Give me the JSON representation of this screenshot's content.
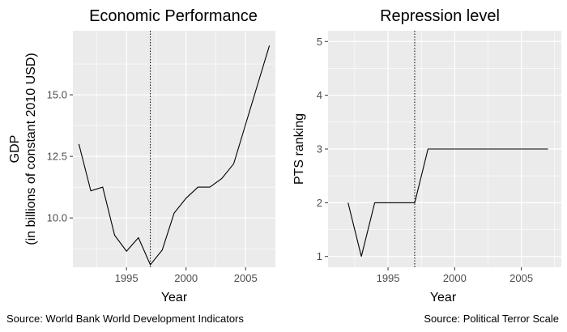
{
  "chart_data": [
    {
      "type": "line",
      "title": "Economic Performance",
      "xlabel": "Year",
      "ylabel_lines": [
        "GDP",
        "(in billions of constant 2010 USD)"
      ],
      "xlim": [
        1990.5,
        2007.5
      ],
      "ylim": [
        8.0,
        17.6
      ],
      "xticks": [
        1995,
        2000,
        2005
      ],
      "yticks": [
        10.0,
        12.5,
        15.0
      ],
      "ytick_labels": [
        "10.0",
        "12.5",
        "15.0"
      ],
      "vline_x": 1997,
      "series": [
        {
          "x": [
            1991,
            1992,
            1993,
            1994,
            1995,
            1996,
            1997,
            1998,
            1999,
            2000,
            2001,
            2002,
            2003,
            2004,
            2005,
            2006,
            2007
          ],
          "values": [
            13.0,
            11.1,
            11.25,
            9.3,
            8.65,
            9.2,
            8.1,
            8.7,
            10.2,
            10.8,
            11.25,
            11.25,
            11.6,
            12.2,
            13.8,
            15.4,
            17.0
          ]
        }
      ],
      "grid": true,
      "caption": "Source: World Bank World Development Indicators",
      "line_color": "#000000",
      "panel_color": "#ebebeb"
    },
    {
      "type": "line",
      "title": "Repression level",
      "xlabel": "Year",
      "ylabel_lines": [
        "PTS ranking"
      ],
      "xlim": [
        1990.5,
        2008.0
      ],
      "ylim": [
        0.8,
        5.2
      ],
      "xticks": [
        1995,
        2000,
        2005
      ],
      "yticks": [
        1,
        2,
        3,
        4,
        5
      ],
      "ytick_labels": [
        "1",
        "2",
        "3",
        "4",
        "5"
      ],
      "vline_x": 1997,
      "series": [
        {
          "x": [
            1992,
            1993,
            1994,
            1995,
            1996,
            1997,
            1998,
            1999,
            2000,
            2001,
            2002,
            2003,
            2004,
            2005,
            2006,
            2007
          ],
          "values": [
            2,
            1,
            2,
            2,
            2,
            2,
            3,
            3,
            3,
            3,
            3,
            3,
            3,
            3,
            3,
            3
          ]
        }
      ],
      "grid": true,
      "caption": "Source: Political Terror Scale",
      "line_color": "#000000",
      "panel_color": "#ebebeb"
    }
  ]
}
